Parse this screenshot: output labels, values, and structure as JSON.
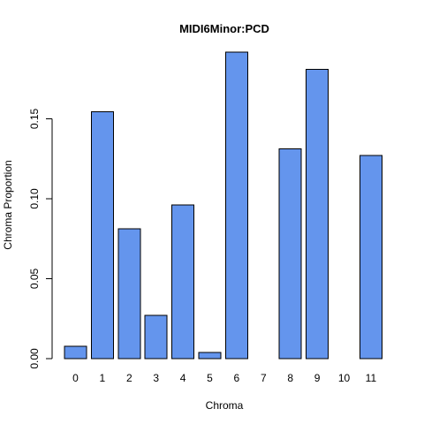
{
  "chart_data": {
    "type": "bar",
    "title": "MIDI6Minor:PCD",
    "xlabel": "Chroma",
    "ylabel": "Chroma Proportion",
    "categories": [
      "0",
      "1",
      "2",
      "3",
      "4",
      "5",
      "6",
      "7",
      "8",
      "9",
      "10",
      "11"
    ],
    "values": [
      0.0078,
      0.1544,
      0.0812,
      0.0272,
      0.0961,
      0.004,
      0.1918,
      0.0,
      0.1312,
      0.1809,
      0.0,
      0.1272
    ],
    "ylim": [
      0,
      0.19
    ],
    "yticks": [
      0.0,
      0.05,
      0.1,
      0.15
    ],
    "ytick_labels": [
      "0.00",
      "0.05",
      "0.10",
      "0.15"
    ],
    "grid": false,
    "legend": "none",
    "bar_color": "#6495ED"
  }
}
